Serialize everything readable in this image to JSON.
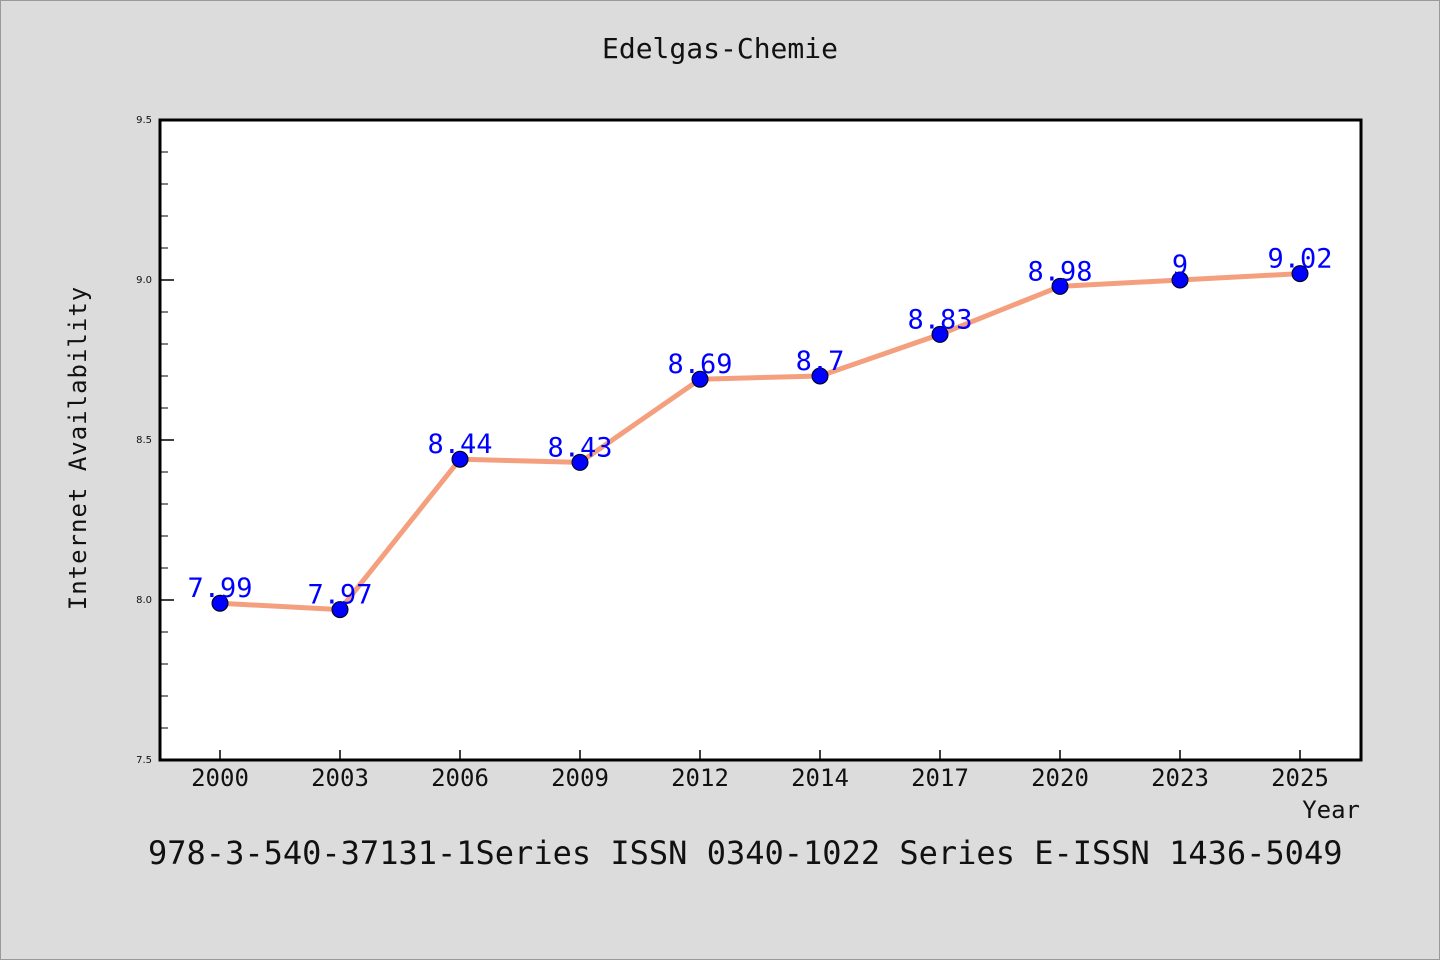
{
  "chart_data": {
    "type": "line",
    "title": "Edelgas-Chemie",
    "xlabel": "Year",
    "ylabel": "Internet Availability",
    "categories": [
      "2000",
      "2003",
      "2006",
      "2009",
      "2012",
      "2014",
      "2017",
      "2020",
      "2023",
      "2025"
    ],
    "series": [
      {
        "values": [
          7.99,
          7.97,
          8.44,
          8.43,
          8.69,
          8.7,
          8.83,
          8.98,
          9,
          9.02
        ],
        "labels": [
          "7.99",
          "7.97",
          "8.44",
          "8.43",
          "8.69",
          "8.7",
          "8.83",
          "8.98",
          "9",
          "9.02"
        ],
        "line_color": "#f4a07e",
        "marker_color": "#0000ff",
        "label_color": "#0000ff"
      }
    ],
    "ylim": [
      7.5,
      9.5
    ],
    "yticks": [
      "7.5",
      "8.0",
      "8.5",
      "9.0",
      "9.5"
    ],
    "grid": false,
    "legend": "none"
  },
  "footer_text": "978-3-540-37131-1Series ISSN 0340-1022 Series E-ISSN 1436-5049",
  "colors": {
    "background": "#dcdcdc",
    "plot_background": "#ffffff",
    "axis": "#000000"
  }
}
